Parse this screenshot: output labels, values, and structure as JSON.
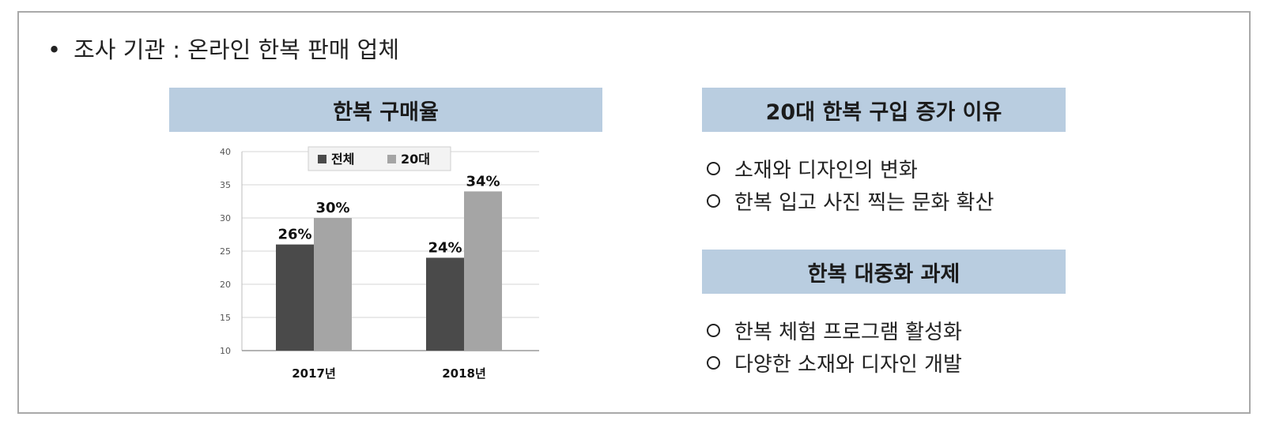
{
  "source_line": {
    "bullet": "•",
    "text": "조사 기관 : 온라인 한복 판매 업체"
  },
  "left_panel": {
    "title": "한복 구매율"
  },
  "chart_data": {
    "type": "bar",
    "title": "한복 구매율",
    "categories": [
      "2017년",
      "2018년"
    ],
    "series": [
      {
        "name": "전체",
        "values": [
          26,
          24
        ],
        "labels": [
          "26%",
          "24%"
        ],
        "color": "#4a4a4a"
      },
      {
        "name": "20대",
        "values": [
          30,
          34
        ],
        "labels": [
          "30%",
          "34%"
        ],
        "color": "#a5a5a5"
      }
    ],
    "ylim": [
      10,
      40
    ],
    "yticks": [
      10,
      15,
      20,
      25,
      30,
      35,
      40
    ],
    "grid": true,
    "legend": "top-center"
  },
  "right_panel": {
    "reasons_title": "20대 한복 구입 증가 이유",
    "reasons": [
      "소재와 디자인의 변화",
      "한복 입고 사진 찍는 문화 확산"
    ],
    "tasks_title": "한복 대중화 과제",
    "tasks": [
      "한복 체험 프로그램 활성화",
      "다양한 소재와 디자인 개발"
    ]
  }
}
